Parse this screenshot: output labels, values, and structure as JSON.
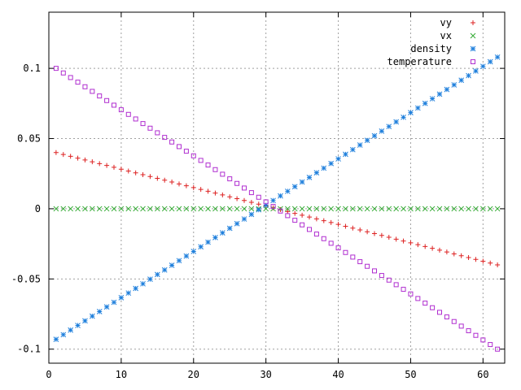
{
  "chart_data": {
    "type": "scatter",
    "title": "",
    "xlabel": "",
    "ylabel": "",
    "xlim": [
      0,
      63
    ],
    "ylim": [
      -0.11,
      0.14
    ],
    "x_ticks": [
      0,
      10,
      20,
      30,
      40,
      50,
      60
    ],
    "x_tick_labels": [
      "0",
      "10",
      "20",
      "30",
      "40",
      "50",
      "60"
    ],
    "y_ticks": [
      -0.1,
      -0.05,
      0,
      0.05,
      0.1
    ],
    "y_tick_labels": [
      "-0.1",
      "-0.05",
      "0",
      "0.05",
      "0.1"
    ],
    "grid": true,
    "legend_position": "top-right",
    "x_range": {
      "start": 1,
      "end": 62,
      "step": 1
    },
    "series": [
      {
        "name": "vy",
        "marker": "plus",
        "color": "#dd2222",
        "y_start": 0.04,
        "y_end": -0.04
      },
      {
        "name": "vx",
        "marker": "cross",
        "color": "#33aa33",
        "y_start": 0.0,
        "y_end": 0.0
      },
      {
        "name": "density",
        "marker": "star",
        "color": "#1e7fdc",
        "y_start": -0.093,
        "y_end": 0.108
      },
      {
        "name": "temperature",
        "marker": "square",
        "color": "#b02ed0",
        "y_start": 0.1,
        "y_end": -0.1
      }
    ]
  }
}
